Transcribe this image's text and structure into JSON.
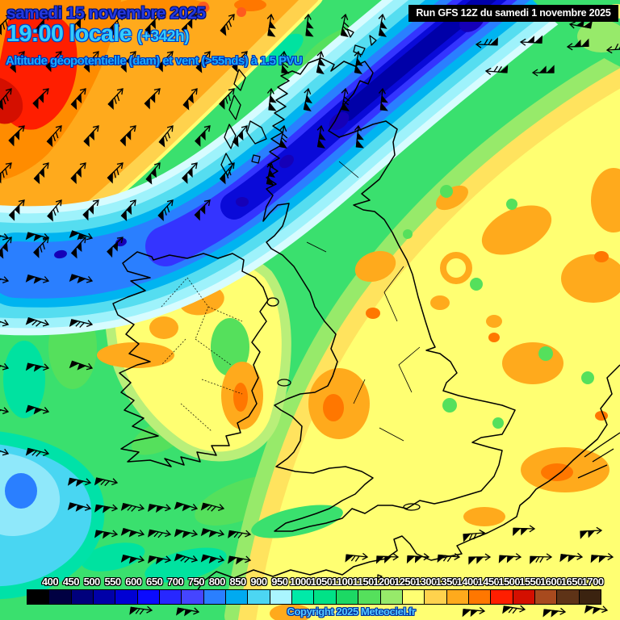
{
  "header": {
    "date_line": "samedi 15 novembre 2025",
    "time_line": "19:00 locale",
    "offset_badge": "(+342h)",
    "subtitle": "Altitude géopotentielle (dam) et vent (>55nds) à 1.5 PVU",
    "date_color": "#2438e0",
    "time_color": "#33ccff",
    "subtitle_color": "#19aaff"
  },
  "run_info": {
    "label": "Run GFS 12Z du samedi 1 novembre 2025",
    "bg_color": "#000000",
    "text_color": "#ffffff"
  },
  "watermark": {
    "label": "Copyright 2025 Meteociel.fr",
    "text_color": "#55c8ff"
  },
  "legend": {
    "tick_labels": [
      "400",
      "450",
      "500",
      "550",
      "600",
      "650",
      "700",
      "750",
      "800",
      "850",
      "900",
      "950",
      "1000",
      "1050",
      "1100",
      "1150",
      "1200",
      "1250",
      "1300",
      "1350",
      "1400",
      "1450",
      "1500",
      "1550",
      "1600",
      "1650",
      "1700"
    ],
    "box_colors": [
      "#000000",
      "#000042",
      "#00007c",
      "#0000a8",
      "#0000d4",
      "#0b0bff",
      "#2727ff",
      "#4545ff",
      "#2a7fff",
      "#00aaf0",
      "#4cd6f2",
      "#aaf5ff",
      "#00eaa8",
      "#00e287",
      "#1cd964",
      "#55e05c",
      "#97ea6a",
      "#ffff72",
      "#ffd24d",
      "#ffaa1c",
      "#ff7700",
      "#ff1e00",
      "#d40f00",
      "#a84a1e",
      "#5e3317",
      "#3b2310"
    ]
  },
  "map": {
    "wind_barb_color": "#000000",
    "coastline_color": "#000000"
  }
}
